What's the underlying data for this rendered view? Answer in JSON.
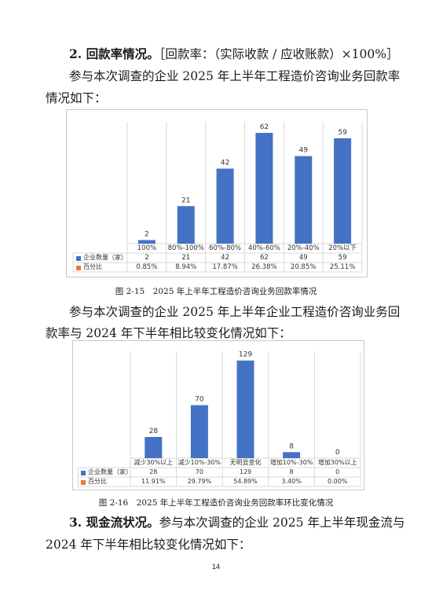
{
  "section2": {
    "heading": "2. 回款率情况。",
    "formula": "［回款率：（实际收款 / 应收账款）×100%］",
    "intro_line1": "参与本次调查的企业 2025 年上半年工程造价咨询业务回款率",
    "intro_line2": "情况如下："
  },
  "chart1": {
    "caption": "图 2-15　2025 年上半年工程造价咨询业务回款率情况",
    "series1_label": "企业数量（家）",
    "series2_label": "百分比",
    "bar_color": "#4472c4",
    "chart_data": {
      "type": "bar",
      "categories": [
        "100%",
        "80%-100%",
        "60%-80%",
        "40%-60%",
        "20%-40%",
        "20%以下"
      ],
      "values": [
        2,
        21,
        42,
        62,
        49,
        59
      ],
      "percentages": [
        "0.85%",
        "8.94%",
        "17.87%",
        "26.38%",
        "20.85%",
        "25.11%"
      ],
      "ylim": [
        0,
        66
      ]
    }
  },
  "middle": {
    "line1": "参与本次调查的企业 2025 年上半年企业工程造价咨询业务回",
    "line2": "款率与 2024 年下半年相比较变化情况如下："
  },
  "chart2": {
    "caption": "图 2-16　2025 年上半年工程造价咨询业务回款率环比变化情况",
    "series1_label": "企业数量（家）",
    "series2_label": "百分比",
    "bar_color": "#4472c4",
    "chart_data": {
      "type": "bar",
      "categories": [
        "减少30%以上",
        "减少10%-30%",
        "无明显变化",
        "增加10%-30%",
        "增加30%以上"
      ],
      "values": [
        28,
        70,
        129,
        8,
        0
      ],
      "percentages": [
        "11.91%",
        "29.79%",
        "54.89%",
        "3.40%",
        "0.00%"
      ],
      "ylim": [
        0,
        136
      ]
    }
  },
  "section3": {
    "heading": "3. 现金流状况。",
    "line1_rest": "参与本次调查的企业 2025 年上半年现金流与",
    "line2": "2024 年下半年相比较变化情况如下："
  },
  "page_number": "14"
}
